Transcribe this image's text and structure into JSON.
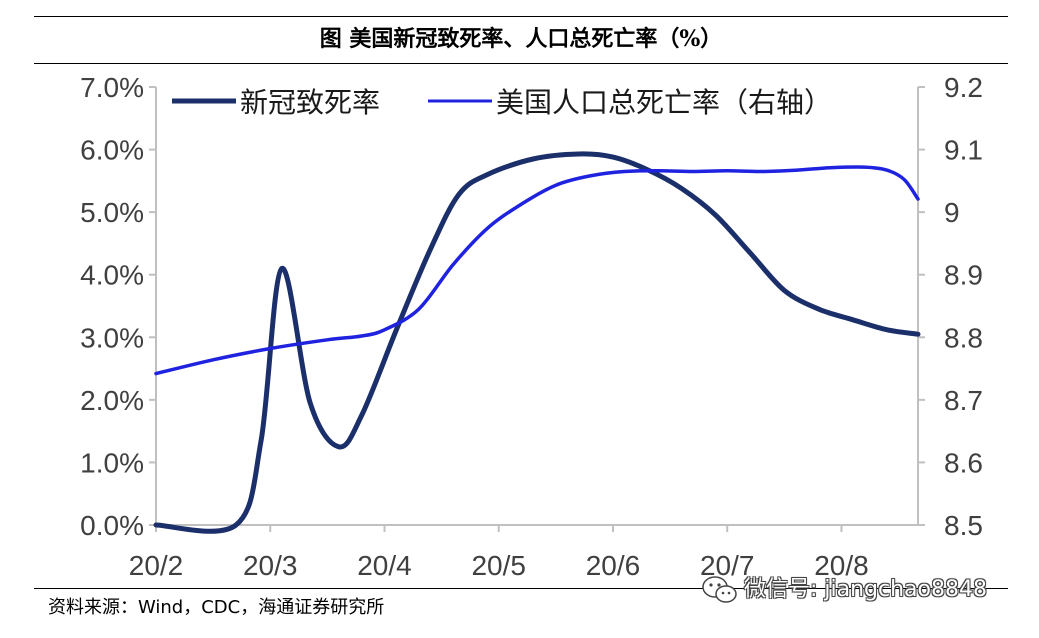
{
  "figure_title": "图  美国新冠致死率、人口总死亡率（%）",
  "source_text": "资料来源：Wind，CDC，海通证券研究所",
  "watermark_text": "微信号: jiangchao8848",
  "watermark_icon": "wechat-logo-icon",
  "colors": {
    "series_dark": "#1b2f6b",
    "series_blue": "#1f23e0",
    "axis": "#c0c0c0",
    "tick_text": "#404040"
  },
  "chart_data": {
    "type": "line",
    "title": "",
    "x_tick_labels": [
      "20/2",
      "20/3",
      "20/4",
      "20/5",
      "20/6",
      "20/7",
      "20/8"
    ],
    "x_range": [
      0,
      6.67
    ],
    "y_left": {
      "min": 0,
      "max": 7,
      "step": 1,
      "tick_labels": [
        "0.0%",
        "1.0%",
        "2.0%",
        "3.0%",
        "4.0%",
        "5.0%",
        "6.0%",
        "7.0%"
      ]
    },
    "y_right": {
      "min": 8.5,
      "max": 9.2,
      "step": 0.1,
      "tick_labels": [
        "8.5",
        "8.6",
        "8.7",
        "8.8",
        "8.9",
        "9",
        "9.1",
        "9.2"
      ]
    },
    "legend_position": "top",
    "grid": false,
    "series": [
      {
        "name": "新冠致死率",
        "axis": "left",
        "x": [
          0.0,
          0.7,
          0.92,
          1.1,
          1.35,
          1.6,
          1.8,
          2.1,
          2.4,
          2.65,
          2.9,
          3.3,
          3.7,
          4.0,
          4.3,
          4.6,
          4.9,
          5.2,
          5.5,
          5.8,
          6.1,
          6.4,
          6.67
        ],
        "y": [
          0.0,
          0.0,
          1.35,
          4.1,
          1.95,
          1.25,
          1.75,
          3.1,
          4.4,
          5.28,
          5.6,
          5.85,
          5.93,
          5.88,
          5.68,
          5.38,
          4.95,
          4.35,
          3.75,
          3.45,
          3.28,
          3.12,
          3.05
        ]
      },
      {
        "name": "美国人口总死亡率（右轴）",
        "axis": "right",
        "x": [
          0.0,
          0.5,
          1.0,
          1.5,
          1.8,
          2.0,
          2.3,
          2.6,
          2.9,
          3.2,
          3.5,
          3.8,
          4.1,
          4.4,
          4.7,
          5.0,
          5.3,
          5.6,
          5.9,
          6.2,
          6.4,
          6.55,
          6.67
        ],
        "y": [
          8.742,
          8.764,
          8.782,
          8.796,
          8.802,
          8.812,
          8.845,
          8.916,
          8.974,
          9.013,
          9.043,
          9.058,
          9.065,
          9.066,
          9.065,
          9.066,
          9.065,
          9.067,
          9.071,
          9.072,
          9.067,
          9.052,
          9.021
        ]
      }
    ]
  }
}
